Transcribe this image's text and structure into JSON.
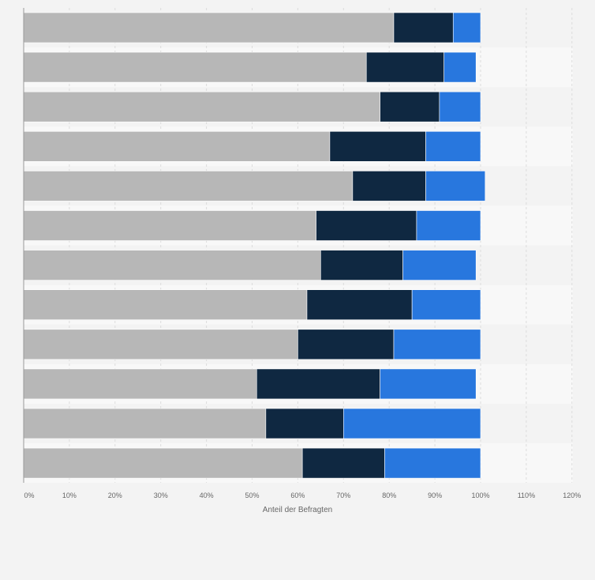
{
  "chart_data": {
    "type": "bar",
    "orientation": "horizontal",
    "stacked": true,
    "xlabel": "Anteil der Befragten",
    "ylabel": "",
    "xlim": [
      0,
      120
    ],
    "tick_labels": [
      "0%",
      "10%",
      "20%",
      "30%",
      "40%",
      "50%",
      "60%",
      "70%",
      "80%",
      "90%",
      "100%",
      "110%",
      "120%"
    ],
    "tick_values": [
      0,
      10,
      20,
      30,
      40,
      50,
      60,
      70,
      80,
      90,
      100,
      110,
      120
    ],
    "categories": [
      "",
      "",
      "",
      "",
      "",
      "",
      "",
      "",
      "",
      "",
      "",
      ""
    ],
    "grid": true,
    "legend": "none",
    "series": [
      {
        "color": "#b7b7b7",
        "values": [
          81,
          75,
          78,
          67,
          72,
          64,
          65,
          62,
          60,
          51,
          53,
          61
        ]
      },
      {
        "color": "#0f2841",
        "values": [
          13,
          17,
          13,
          21,
          16,
          22,
          18,
          23,
          21,
          27,
          17,
          18
        ]
      },
      {
        "color": "#2877de",
        "values": [
          6,
          7,
          9,
          12,
          13,
          14,
          16,
          15,
          19,
          21,
          30,
          21
        ]
      }
    ]
  }
}
